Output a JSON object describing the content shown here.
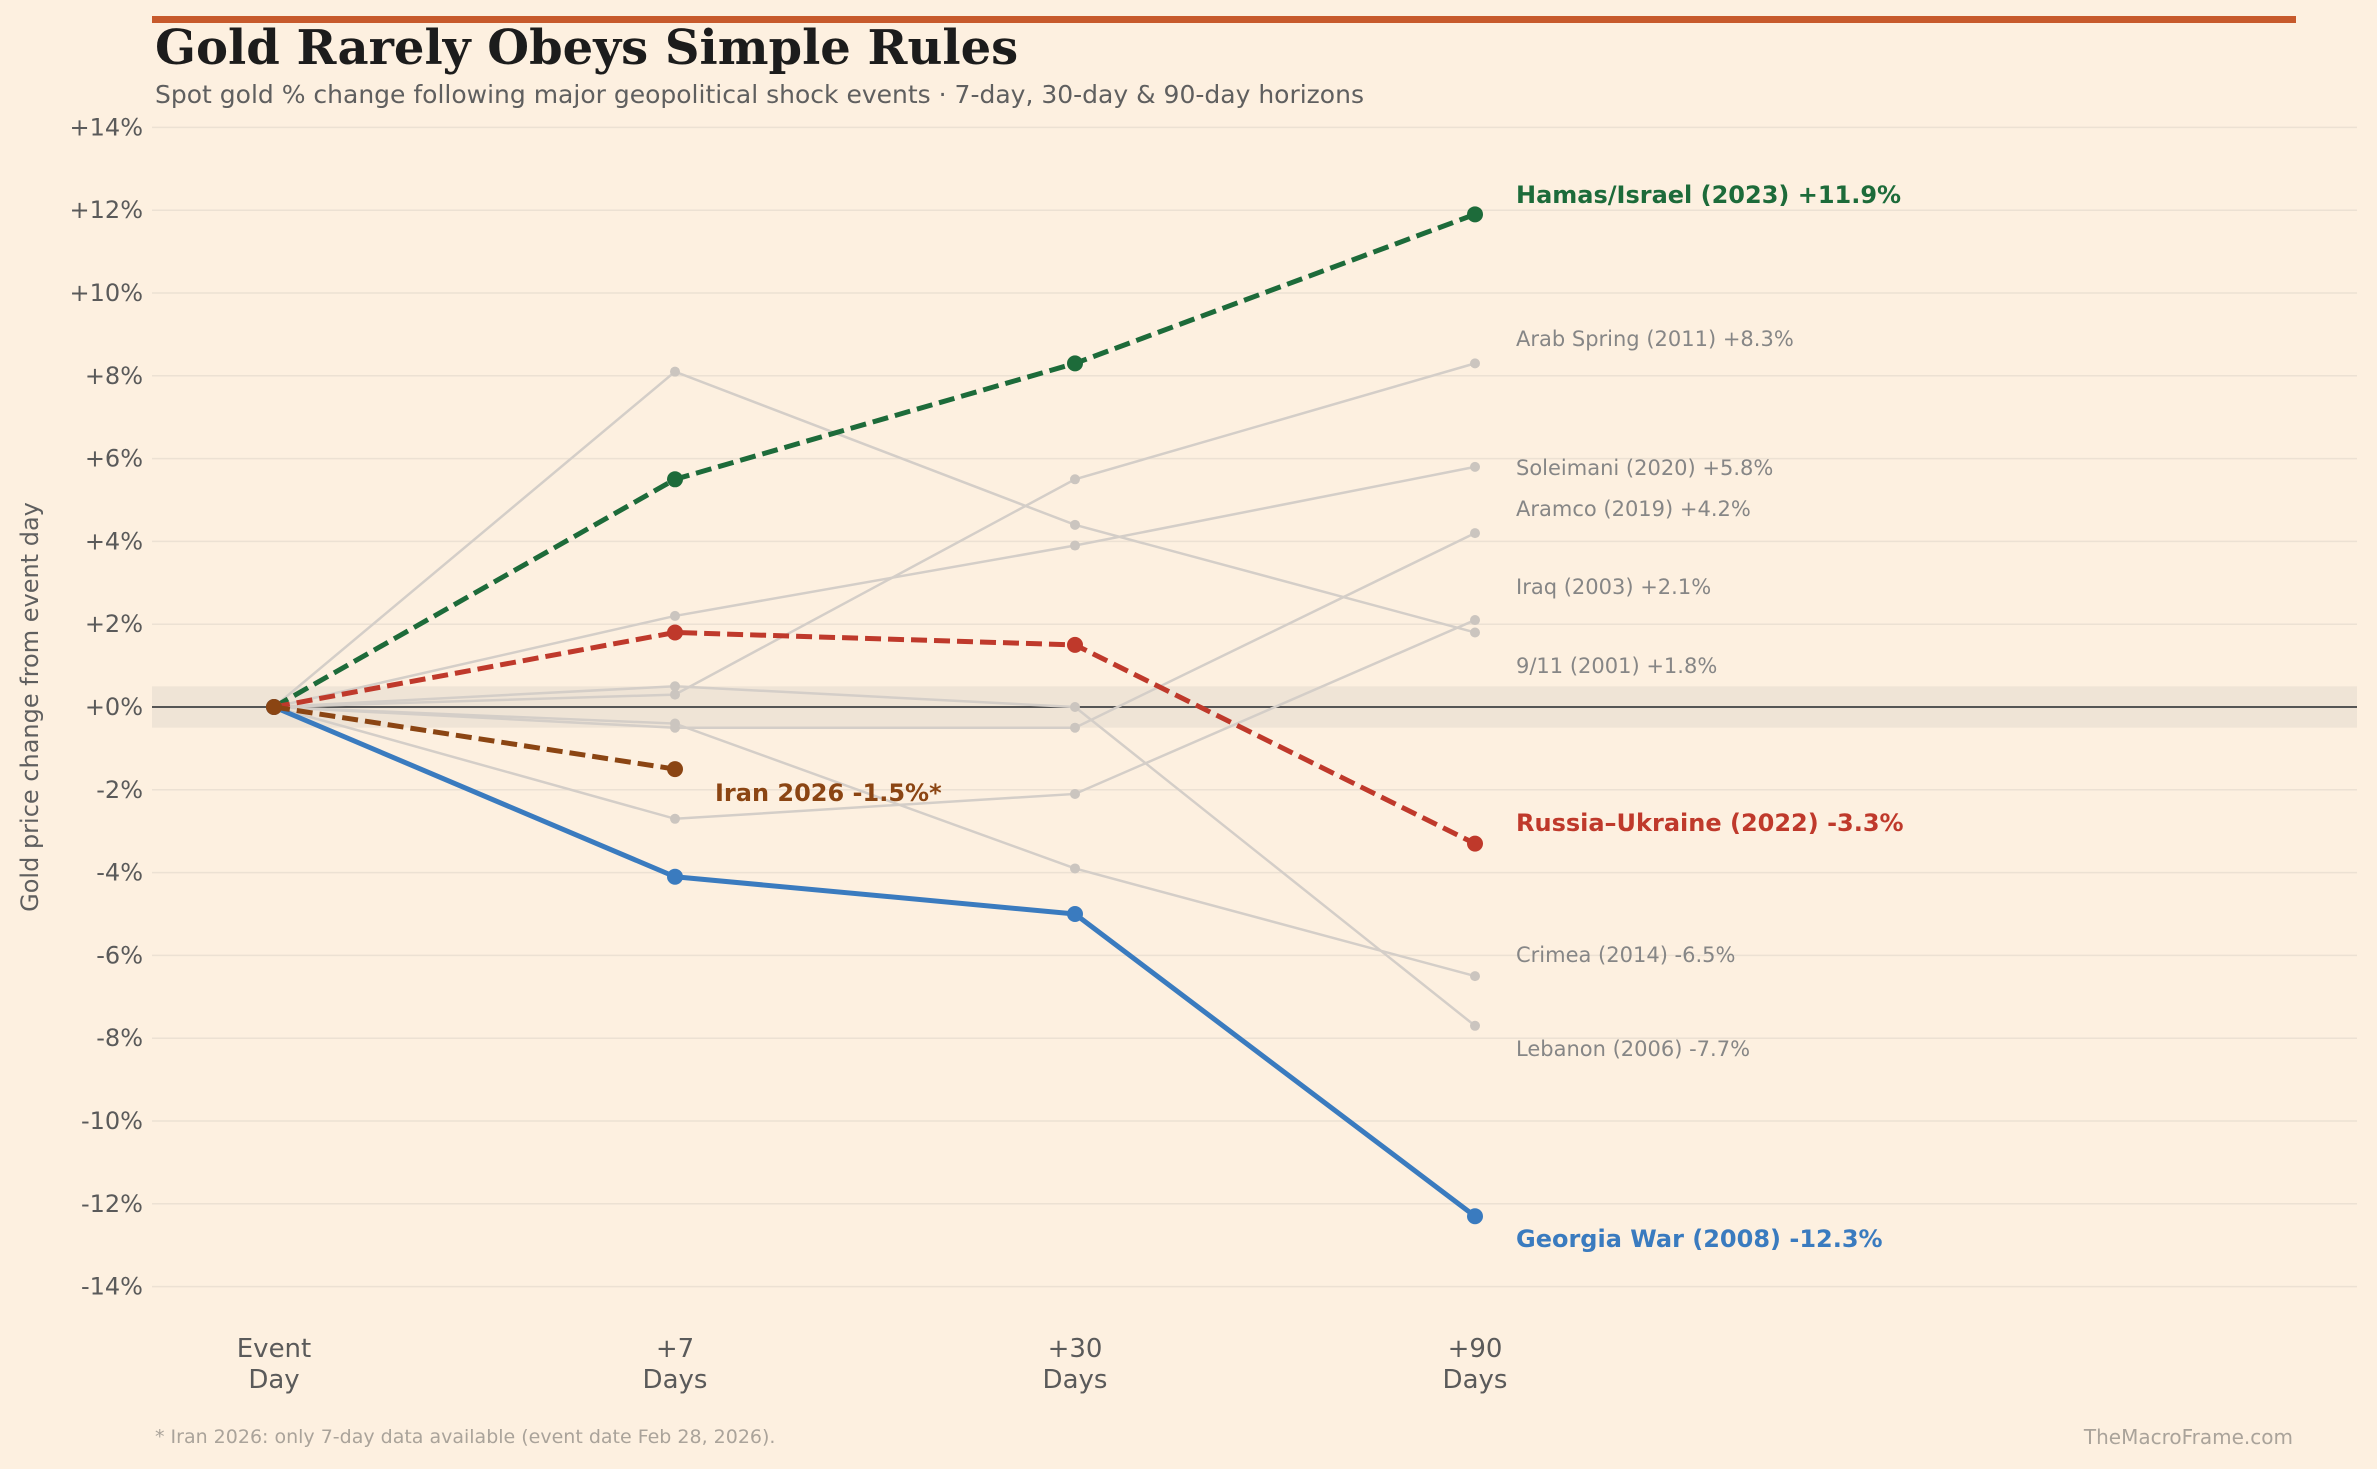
{
  "header": {
    "title": "Gold Rarely Obeys Simple Rules",
    "subtitle": "Spot gold % change following major geopolitical shock events  ·  7-day, 30-day & 90-day horizons"
  },
  "footer": {
    "footnote": "* Iran 2026: only 7-day data available (event date Feb 28, 2026).",
    "credit": "TheMacroFrame.com"
  },
  "colors": {
    "accent": "#c75a2c",
    "background": "#fdf0e0",
    "grey": "#d4cec8",
    "zero_line": "#555555",
    "zero_band": "#efe4d6"
  },
  "chart_data": {
    "type": "line",
    "title": "Gold Rarely Obeys Simple Rules",
    "ylabel": "Gold price change from event day",
    "xlabel": "",
    "x_categories": [
      [
        "Event",
        "Day"
      ],
      [
        "+7",
        "Days"
      ],
      [
        "+30",
        "Days"
      ],
      [
        "+90",
        "Days"
      ]
    ],
    "ylim": [
      -15,
      14
    ],
    "yticks": [
      14,
      12,
      10,
      8,
      6,
      4,
      2,
      0,
      -2,
      -4,
      -6,
      -8,
      -10,
      -12,
      -14
    ],
    "ytick_labels": [
      "+14%",
      "+12%",
      "+10%",
      "+8%",
      "+6%",
      "+4%",
      "+2%",
      "+0%",
      "-2%",
      "-4%",
      "-6%",
      "-8%",
      "-10%",
      "-12%",
      "-14%"
    ],
    "grid": true,
    "zero_band": [
      -0.5,
      0.5
    ],
    "background_series": [
      {
        "name": "Arab Spring (2011)",
        "values": [
          0,
          0.3,
          5.5,
          8.3
        ],
        "label": "Arab Spring (2011)  +8.3%"
      },
      {
        "name": "Soleimani (2020)",
        "values": [
          0,
          2.2,
          3.9,
          5.8
        ],
        "label": "Soleimani (2020)  +5.8%"
      },
      {
        "name": "Aramco (2019)",
        "values": [
          0,
          -0.5,
          -0.5,
          4.2
        ],
        "label": "Aramco (2019)  +4.2%"
      },
      {
        "name": "Iraq (2003)",
        "values": [
          0,
          -2.7,
          -2.1,
          2.1
        ],
        "label": "Iraq (2003)  +2.1%"
      },
      {
        "name": "9/11 (2001)",
        "values": [
          0,
          8.1,
          4.4,
          1.8
        ],
        "label": "9/11 (2001)  +1.8%"
      },
      {
        "name": "Crimea (2014)",
        "values": [
          0,
          -0.4,
          -3.9,
          -6.5
        ],
        "label": "Crimea (2014)  -6.5%"
      },
      {
        "name": "Lebanon (2006)",
        "values": [
          0,
          0.5,
          0.0,
          -7.7
        ],
        "label": "Lebanon (2006)  -7.7%"
      }
    ],
    "highlight_series": [
      {
        "name": "Hamas/Israel (2023)",
        "values": [
          0,
          5.5,
          8.3,
          11.9
        ],
        "color": "#1d6b3a",
        "dashed": true,
        "label": "Hamas/Israel (2023)  +11.9%"
      },
      {
        "name": "Russia–Ukraine (2022)",
        "values": [
          0,
          1.8,
          1.5,
          -3.3
        ],
        "color": "#bf392b",
        "dashed": true,
        "label": "Russia–Ukraine (2022)  -3.3%"
      },
      {
        "name": "Georgia War (2008)",
        "values": [
          0,
          -4.1,
          -5.0,
          -12.3
        ],
        "color": "#3a7bbf",
        "dashed": false,
        "label": "Georgia War (2008)  -12.3%"
      },
      {
        "name": "Iran 2026",
        "values": [
          0,
          -1.5
        ],
        "color": "#8b4513",
        "dashed": true,
        "label": "Iran 2026  -1.5%*"
      }
    ]
  }
}
